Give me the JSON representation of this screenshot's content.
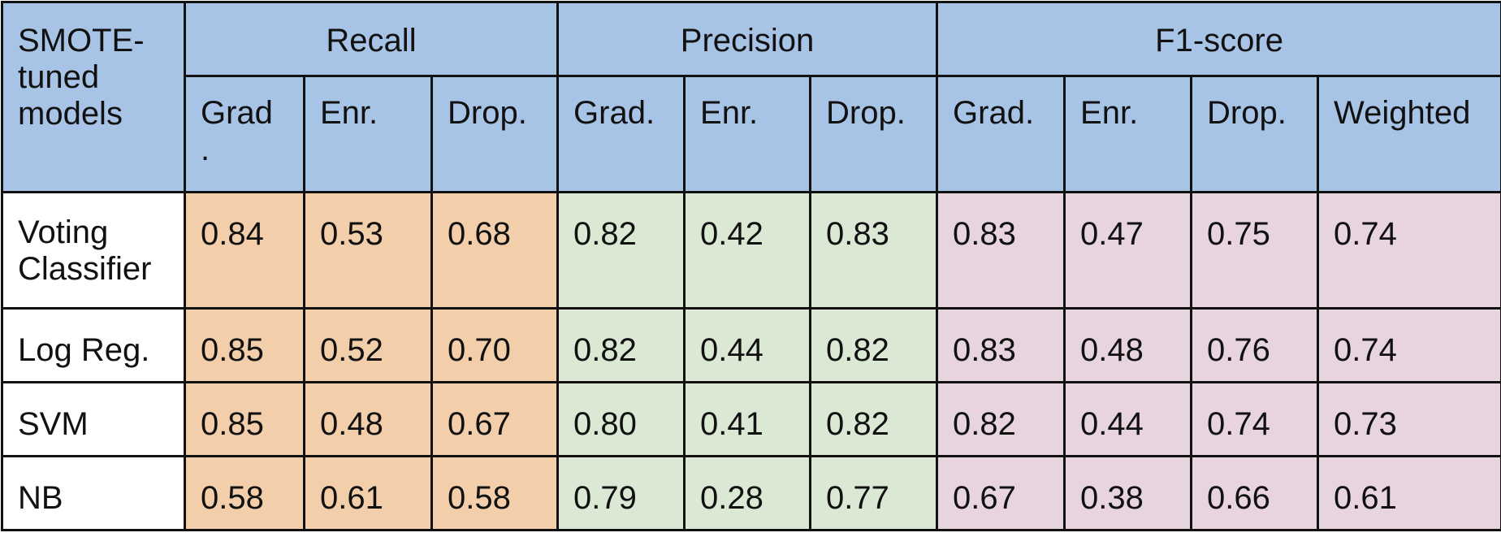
{
  "table": {
    "corner_label": "SMOTE-tuned models",
    "groups": [
      "Recall",
      "Precision",
      "F1-score"
    ],
    "sub_headers": [
      "Grad\n.",
      "Enr.",
      "Drop.",
      "Grad.",
      "Enr.",
      "Drop.",
      "Grad.",
      "Enr.",
      "Drop.",
      "Weighted"
    ],
    "rows": [
      {
        "model": "Voting Classifier",
        "values": [
          "0.84",
          "0.53",
          "0.68",
          "0.82",
          "0.42",
          "0.83",
          "0.83",
          "0.47",
          "0.75",
          "0.74"
        ]
      },
      {
        "model": "Log Reg.",
        "values": [
          "0.85",
          "0.52",
          "0.70",
          "0.82",
          "0.44",
          "0.82",
          "0.83",
          "0.48",
          "0.76",
          "0.74"
        ]
      },
      {
        "model": "SVM",
        "values": [
          "0.85",
          "0.48",
          "0.67",
          "0.80",
          "0.41",
          "0.82",
          "0.82",
          "0.44",
          "0.74",
          "0.73"
        ]
      },
      {
        "model": "NB",
        "values": [
          "0.58",
          "0.61",
          "0.58",
          "0.79",
          "0.28",
          "0.77",
          "0.67",
          "0.38",
          "0.66",
          "0.61"
        ]
      }
    ]
  },
  "colors": {
    "header": "#a7c4e6",
    "recall": "#f2ceaa",
    "precision": "#dbe8d4",
    "f1": "#e7d4df"
  }
}
